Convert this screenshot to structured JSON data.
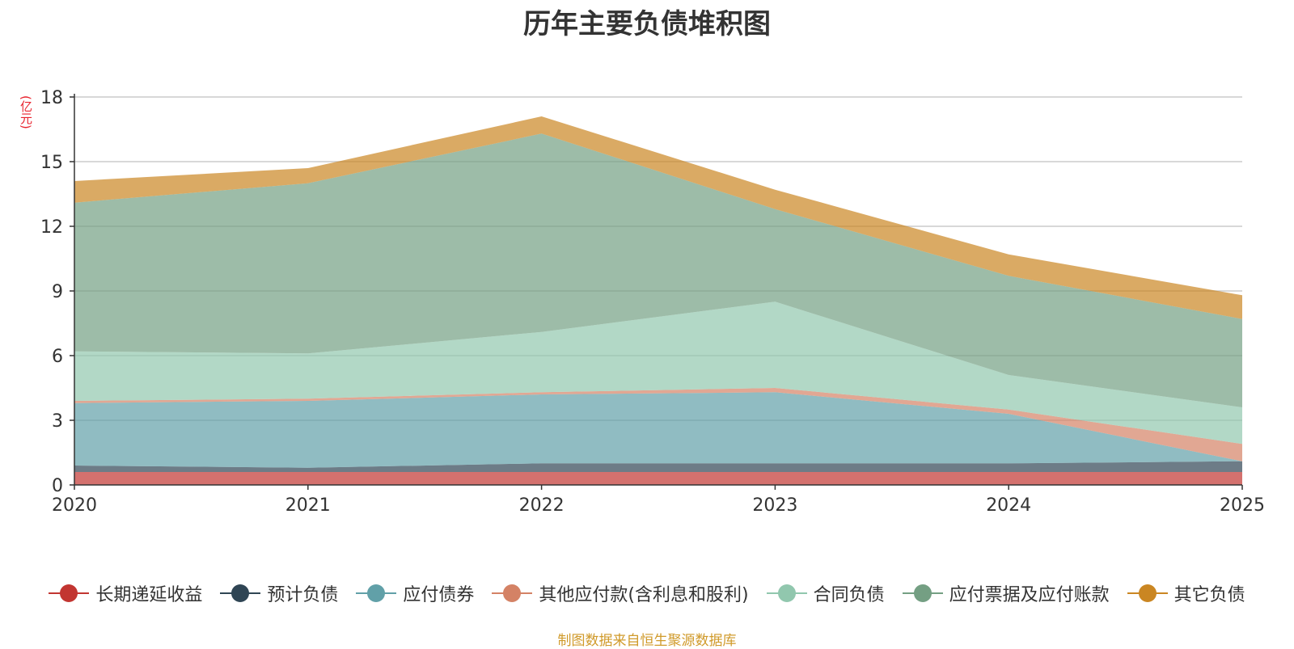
{
  "chart_data": {
    "type": "area",
    "stacked": true,
    "title": "历年主要负债堆积图",
    "ylabel": "(亿元)",
    "xlabel": "",
    "categories": [
      "2020",
      "2021",
      "2022",
      "2023",
      "2024",
      "2025"
    ],
    "ylim": [
      0,
      18
    ],
    "yticks": [
      0,
      3,
      6,
      9,
      12,
      15,
      18
    ],
    "grid": true,
    "legend_position": "bottom",
    "series": [
      {
        "name": "长期递延收益",
        "color": "#c23531",
        "values": [
          0.6,
          0.6,
          0.6,
          0.6,
          0.6,
          0.6
        ]
      },
      {
        "name": "预计负债",
        "color": "#2f4554",
        "values": [
          0.3,
          0.2,
          0.4,
          0.4,
          0.4,
          0.5
        ]
      },
      {
        "name": "应付债券",
        "color": "#61a0a8",
        "values": [
          2.9,
          3.1,
          3.2,
          3.3,
          2.3,
          0.0
        ]
      },
      {
        "name": "其他应付款(含利息和股利)",
        "color": "#d48265",
        "values": [
          0.1,
          0.1,
          0.1,
          0.2,
          0.2,
          0.8
        ]
      },
      {
        "name": "合同负债",
        "color": "#91c7ae",
        "values": [
          2.3,
          2.1,
          2.8,
          4.0,
          1.6,
          1.7
        ]
      },
      {
        "name": "应付票据及应付账款",
        "color": "#749f83",
        "values": [
          6.9,
          7.9,
          9.2,
          4.3,
          4.6,
          4.1
        ]
      },
      {
        "name": "其它负债",
        "color": "#ca8622",
        "values": [
          1.0,
          0.7,
          0.8,
          0.9,
          1.0,
          1.1
        ]
      }
    ]
  },
  "footer": {
    "source": "制图数据来自恒生聚源数据库"
  }
}
